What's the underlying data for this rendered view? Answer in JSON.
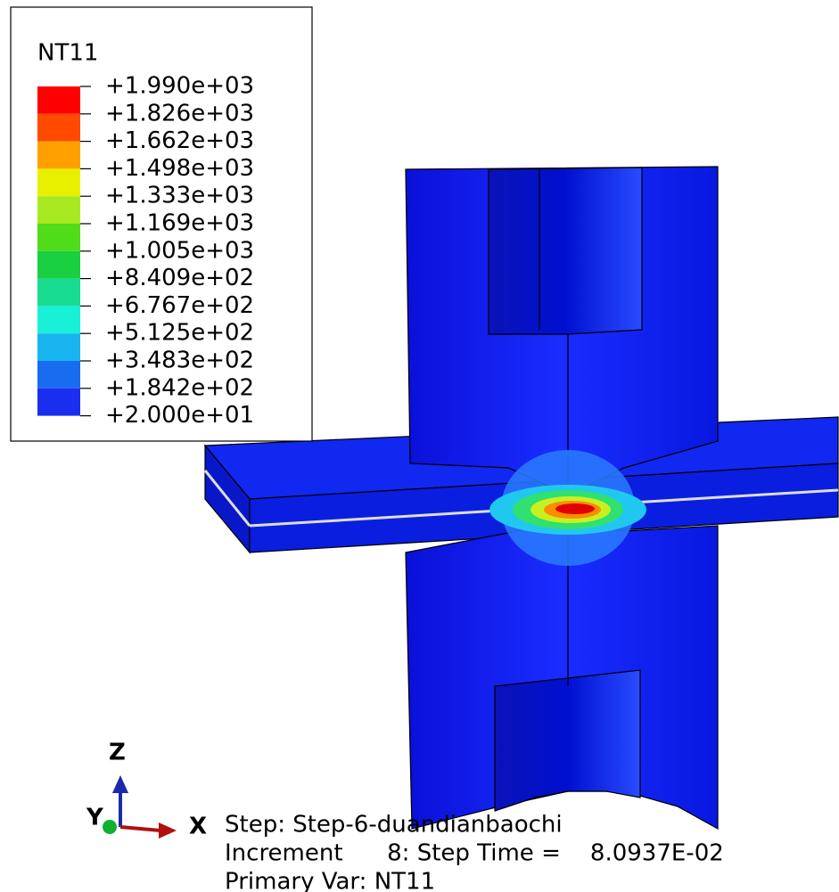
{
  "legend": {
    "title": "NT11",
    "labels": [
      "+1.990e+03",
      "+1.826e+03",
      "+1.662e+03",
      "+1.498e+03",
      "+1.333e+03",
      "+1.169e+03",
      "+1.005e+03",
      "+8.409e+02",
      "+6.767e+02",
      "+5.125e+02",
      "+3.483e+02",
      "+1.842e+02",
      "+2.000e+01"
    ]
  },
  "triad": {
    "z": "Z",
    "y": "Y",
    "x": "X"
  },
  "status": {
    "step": "Step: Step-6-duandianbaochi",
    "increment": "Increment      8: Step Time =    8.0937E-02",
    "primary_var": "Primary Var: NT11"
  }
}
